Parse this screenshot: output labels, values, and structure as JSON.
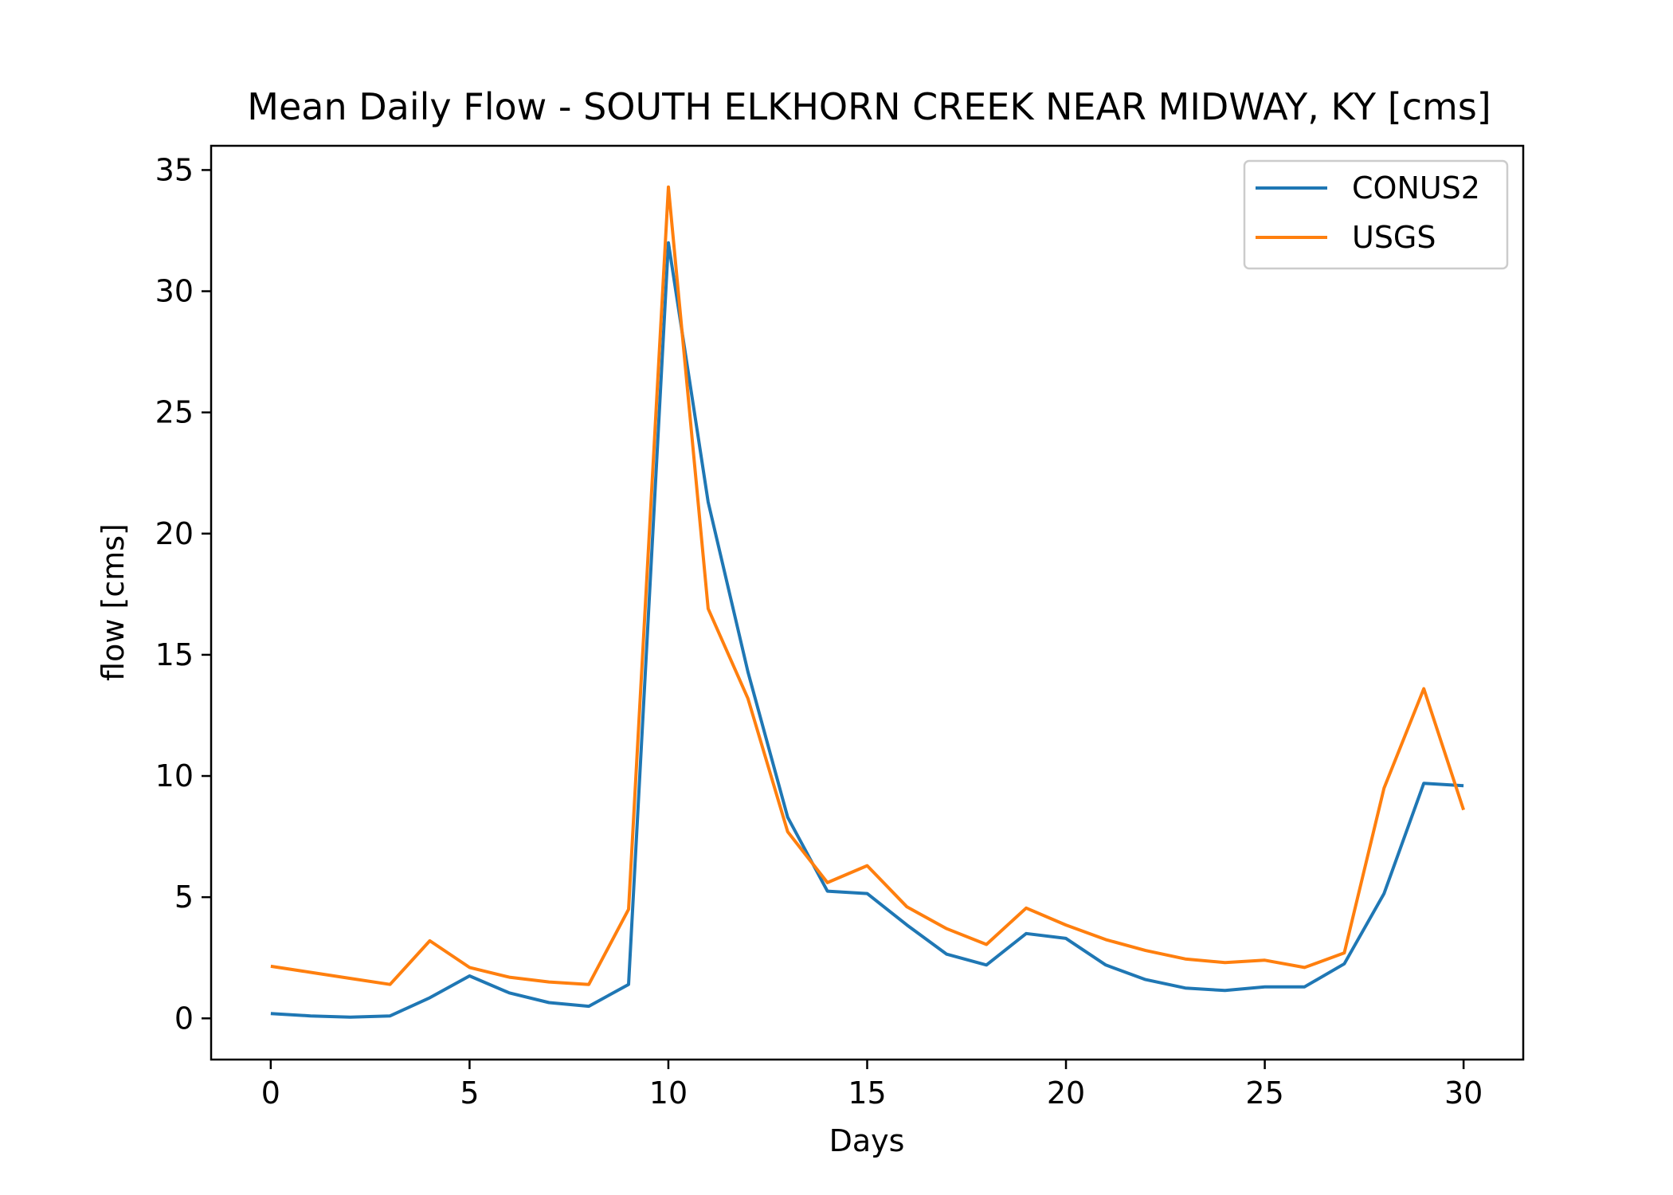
{
  "chart_data": {
    "type": "line",
    "title": "Mean Daily Flow - SOUTH ELKHORN CREEK NEAR MIDWAY, KY [cms]",
    "xlabel": "Days",
    "ylabel": "flow [cms]",
    "xlim": [
      -1.5,
      31.5
    ],
    "ylim": [
      -1.7,
      36.0
    ],
    "xticks": [
      0,
      5,
      10,
      15,
      20,
      25,
      30
    ],
    "yticks": [
      0,
      5,
      10,
      15,
      20,
      25,
      30,
      35
    ],
    "grid": false,
    "legend_position": "top-right",
    "x": [
      0,
      1,
      2,
      3,
      4,
      5,
      6,
      7,
      8,
      9,
      10,
      11,
      12,
      13,
      14,
      15,
      16,
      17,
      18,
      19,
      20,
      21,
      22,
      23,
      24,
      25,
      26,
      27,
      28,
      29,
      30
    ],
    "series": [
      {
        "name": "CONUS2",
        "color": "#1f77b4",
        "values": [
          0.2,
          0.1,
          0.05,
          0.1,
          0.85,
          1.75,
          1.05,
          0.65,
          0.5,
          1.4,
          32.0,
          21.3,
          14.3,
          8.3,
          5.25,
          5.15,
          3.85,
          2.65,
          2.2,
          3.5,
          3.3,
          2.2,
          1.6,
          1.25,
          1.15,
          1.3,
          1.3,
          2.25,
          5.15,
          9.7,
          9.6
        ]
      },
      {
        "name": "USGS",
        "color": "#ff7f0e",
        "values": [
          2.15,
          1.9,
          1.65,
          1.4,
          3.2,
          2.1,
          1.7,
          1.5,
          1.4,
          4.5,
          34.3,
          16.9,
          13.2,
          7.7,
          5.6,
          6.3,
          4.6,
          3.7,
          3.05,
          4.55,
          3.85,
          3.25,
          2.8,
          2.45,
          2.3,
          2.4,
          2.1,
          2.7,
          9.5,
          13.6,
          8.6
        ]
      }
    ]
  }
}
